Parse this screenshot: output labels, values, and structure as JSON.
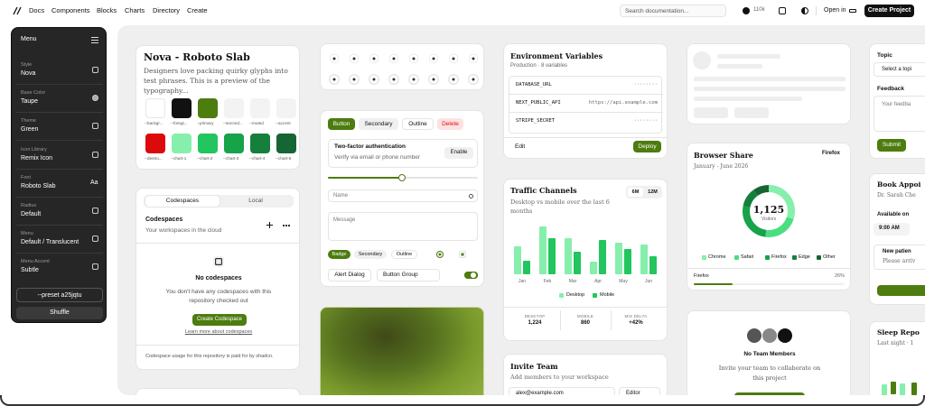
{
  "nav": {
    "links": [
      "Docs",
      "Components",
      "Blocks",
      "Charts",
      "Directory",
      "Create"
    ],
    "search": "Search documentation...",
    "stars": "110k",
    "open_in": "Open in",
    "cta": "Create Project"
  },
  "customizer": {
    "title": "Menu",
    "options": [
      {
        "label": "Style",
        "value": "Nova"
      },
      {
        "label": "Base Color",
        "value": "Taupe"
      },
      {
        "label": "Theme",
        "value": "Green"
      },
      {
        "label": "Icon Library",
        "value": "Remix Icon"
      },
      {
        "label": "Font",
        "value": "Roboto Slab",
        "hint": "Aa"
      },
      {
        "label": "Radius",
        "value": "Default"
      },
      {
        "label": "Menu",
        "value": "Default / Translucent"
      },
      {
        "label": "Menu Accent",
        "value": "Subtle"
      }
    ],
    "preset": "--preset a25jqtu",
    "shuffle": "Shuffle"
  },
  "typography": {
    "title": "Nova - Roboto Slab",
    "text": "Designers love packing quirky glyphs into test phrases. This is a preview of the typography...",
    "swatches": [
      {
        "name": "--backgr...",
        "color": "#ffffff"
      },
      {
        "name": "--foregr...",
        "color": "#111111"
      },
      {
        "name": "--primary",
        "color": "#4d7c0f"
      },
      {
        "name": "--second...",
        "color": "#f3f3f3"
      },
      {
        "name": "--muted",
        "color": "#f3f3f3"
      },
      {
        "name": "--accent",
        "color": "#f3f3f3"
      },
      {
        "name": "--destru...",
        "color": "#dc0a0a"
      },
      {
        "name": "--chart-1",
        "color": "#86efac"
      },
      {
        "name": "--chart-2",
        "color": "#22c55e"
      },
      {
        "name": "--chart-3",
        "color": "#16a34a"
      },
      {
        "name": "--chart-4",
        "color": "#15803d"
      },
      {
        "name": "--chart-5",
        "color": "#166534"
      }
    ]
  },
  "codespaces": {
    "tabs": [
      "Codespaces",
      "Local"
    ],
    "title": "Codespaces",
    "subtitle": "Your workspaces in the cloud",
    "empty_title": "No codespaces",
    "empty_text": "You don't have any codespaces with this repository checked out",
    "button": "Create Codespace",
    "link": "Learn more about codespaces",
    "footer": "Codespace usage for this repository is paid for by shadcn."
  },
  "components": {
    "buttons": [
      "Button",
      "Secondary",
      "Outline",
      "Delete"
    ],
    "twofa_title": "Two-factor authentication",
    "twofa_text": "Verify via email or phone number",
    "enable": "Enable",
    "name_placeholder": "Name",
    "message_placeholder": "Message",
    "badges": [
      "Badge",
      "Secondary",
      "Outline"
    ],
    "alert": "Alert Dialog",
    "group": "Button Group"
  },
  "env": {
    "title": "Environment Variables",
    "subtitle": "Production · 8 variables",
    "vars": [
      {
        "key": "DATABASE_URL",
        "value": "········"
      },
      {
        "key": "NEXT_PUBLIC_API",
        "value": "https://api.example.com"
      },
      {
        "key": "STRIPE_SECRET",
        "value": "········"
      }
    ],
    "edit": "Edit",
    "deploy": "Deploy"
  },
  "traffic": {
    "title": "Traffic Channels",
    "subtitle": "Desktop vs mobile over the last 6 months",
    "ranges": [
      "6M",
      "12M"
    ],
    "categories": [
      "Jan",
      "Feb",
      "Mar",
      "Apr",
      "May",
      "Jun"
    ],
    "series": [
      {
        "name": "Desktop",
        "color": "#86efac",
        "values": [
          31,
          53,
          40,
          14,
          35,
          33
        ]
      },
      {
        "name": "Mobile",
        "color": "#22c55e",
        "values": [
          15,
          40,
          25,
          38,
          28,
          20
        ]
      }
    ],
    "stats": [
      {
        "label": "DESKTOP",
        "value": "1,224"
      },
      {
        "label": "MOBILE",
        "value": "860"
      },
      {
        "label": "MIX DELTA",
        "value": "+42%"
      }
    ]
  },
  "invite": {
    "title": "Invite Team",
    "subtitle": "Add members to your workspace",
    "email": "alex@example.com",
    "role": "Editor"
  },
  "browser": {
    "title": "Browser Share",
    "subtitle": "January - June 2026",
    "select": "Firefox",
    "total": "1,125",
    "total_label": "Visitors",
    "segments": [
      {
        "name": "Chrome",
        "color": "#86efac",
        "value": 30
      },
      {
        "name": "Safari",
        "color": "#4ade80",
        "value": 22
      },
      {
        "name": "Firefox",
        "color": "#16a34a",
        "value": 26
      },
      {
        "name": "Edge",
        "color": "#15803d",
        "value": 12
      },
      {
        "name": "Other",
        "color": "#166534",
        "value": 10
      }
    ],
    "footer_name": "Firefox",
    "footer_value": "26%"
  },
  "team": {
    "title": "No Team Members",
    "text": "Invite your team to collaborate on this project"
  },
  "feedback": {
    "topic": "Topic",
    "topic_placeholder": "Select a topi",
    "feedback": "Feedback",
    "feedback_placeholder": "Your feedba",
    "submit": "Submit"
  },
  "booking": {
    "title": "Book Appoi",
    "doctor": "Dr. Sarah Che",
    "available": "Available on",
    "time": "9:00 AM",
    "new_title": "New patien",
    "new_text": "Please arriv"
  },
  "sleep": {
    "title": "Sleep Repo",
    "subtitle": "Last night · 1"
  }
}
